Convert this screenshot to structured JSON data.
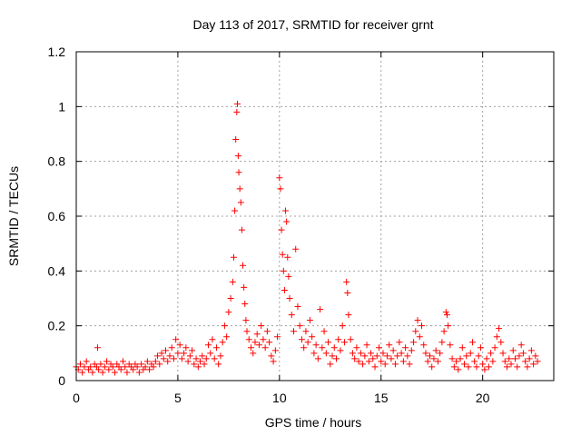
{
  "chart_data": {
    "type": "scatter",
    "title": "Day 113 of 2017, SRMTID for receiver grnt",
    "xlabel": "GPS time / hours",
    "ylabel": "SRMTID / TECUs",
    "xlim": [
      0,
      23.5
    ],
    "ylim": [
      0,
      1.2
    ],
    "x_ticks": [
      0,
      5,
      10,
      15,
      20
    ],
    "x_tick_labels": [
      "0",
      "5",
      "10",
      "15",
      "20"
    ],
    "y_ticks": [
      0,
      0.2,
      0.4,
      0.6,
      0.8,
      1.0,
      1.2
    ],
    "y_tick_labels": [
      "0",
      "0.2",
      "0.4",
      "0.6",
      "0.8",
      "1",
      "1.2"
    ],
    "grid": true,
    "marker": "+",
    "series_color": "#ff0000",
    "series": [
      {
        "name": "SRMTID",
        "points": [
          [
            0.0,
            0.05
          ],
          [
            0.1,
            0.04
          ],
          [
            0.2,
            0.06
          ],
          [
            0.3,
            0.03
          ],
          [
            0.4,
            0.05
          ],
          [
            0.5,
            0.07
          ],
          [
            0.6,
            0.04
          ],
          [
            0.7,
            0.05
          ],
          [
            0.8,
            0.03
          ],
          [
            0.9,
            0.06
          ],
          [
            1.0,
            0.05
          ],
          [
            1.05,
            0.12
          ],
          [
            1.1,
            0.04
          ],
          [
            1.2,
            0.06
          ],
          [
            1.3,
            0.03
          ],
          [
            1.4,
            0.05
          ],
          [
            1.5,
            0.07
          ],
          [
            1.6,
            0.04
          ],
          [
            1.7,
            0.06
          ],
          [
            1.8,
            0.05
          ],
          [
            1.9,
            0.03
          ],
          [
            2.0,
            0.06
          ],
          [
            2.1,
            0.05
          ],
          [
            2.2,
            0.04
          ],
          [
            2.3,
            0.07
          ],
          [
            2.4,
            0.05
          ],
          [
            2.5,
            0.03
          ],
          [
            2.6,
            0.06
          ],
          [
            2.7,
            0.05
          ],
          [
            2.8,
            0.04
          ],
          [
            2.9,
            0.06
          ],
          [
            3.0,
            0.05
          ],
          [
            3.1,
            0.03
          ],
          [
            3.2,
            0.06
          ],
          [
            3.3,
            0.04
          ],
          [
            3.4,
            0.05
          ],
          [
            3.5,
            0.07
          ],
          [
            3.6,
            0.04
          ],
          [
            3.7,
            0.06
          ],
          [
            3.8,
            0.05
          ],
          [
            3.9,
            0.07
          ],
          [
            4.0,
            0.09
          ],
          [
            4.1,
            0.06
          ],
          [
            4.2,
            0.1
          ],
          [
            4.3,
            0.08
          ],
          [
            4.4,
            0.11
          ],
          [
            4.5,
            0.07
          ],
          [
            4.6,
            0.09
          ],
          [
            4.7,
            0.12
          ],
          [
            4.8,
            0.08
          ],
          [
            4.9,
            0.15
          ],
          [
            5.0,
            0.1
          ],
          [
            5.1,
            0.13
          ],
          [
            5.2,
            0.08
          ],
          [
            5.3,
            0.1
          ],
          [
            5.4,
            0.12
          ],
          [
            5.5,
            0.07
          ],
          [
            5.6,
            0.09
          ],
          [
            5.7,
            0.11
          ],
          [
            5.8,
            0.06
          ],
          [
            5.9,
            0.08
          ],
          [
            6.0,
            0.05
          ],
          [
            6.1,
            0.07
          ],
          [
            6.2,
            0.09
          ],
          [
            6.3,
            0.06
          ],
          [
            6.4,
            0.08
          ],
          [
            6.5,
            0.13
          ],
          [
            6.6,
            0.1
          ],
          [
            6.7,
            0.15
          ],
          [
            6.8,
            0.08
          ],
          [
            6.9,
            0.12
          ],
          [
            7.0,
            0.06
          ],
          [
            7.1,
            0.09
          ],
          [
            7.2,
            0.14
          ],
          [
            7.3,
            0.2
          ],
          [
            7.4,
            0.16
          ],
          [
            7.5,
            0.25
          ],
          [
            7.6,
            0.3
          ],
          [
            7.7,
            0.36
          ],
          [
            7.75,
            0.45
          ],
          [
            7.8,
            0.62
          ],
          [
            7.85,
            0.88
          ],
          [
            7.9,
            0.98
          ],
          [
            7.93,
            1.01
          ],
          [
            7.97,
            0.82
          ],
          [
            8.0,
            0.76
          ],
          [
            8.05,
            0.7
          ],
          [
            8.1,
            0.65
          ],
          [
            8.15,
            0.55
          ],
          [
            8.2,
            0.42
          ],
          [
            8.25,
            0.34
          ],
          [
            8.3,
            0.28
          ],
          [
            8.35,
            0.22
          ],
          [
            8.4,
            0.18
          ],
          [
            8.5,
            0.15
          ],
          [
            8.6,
            0.12
          ],
          [
            8.7,
            0.1
          ],
          [
            8.8,
            0.14
          ],
          [
            8.9,
            0.17
          ],
          [
            9.0,
            0.13
          ],
          [
            9.1,
            0.2
          ],
          [
            9.2,
            0.15
          ],
          [
            9.3,
            0.12
          ],
          [
            9.4,
            0.18
          ],
          [
            9.5,
            0.14
          ],
          [
            9.6,
            0.09
          ],
          [
            9.7,
            0.07
          ],
          [
            9.8,
            0.11
          ],
          [
            9.9,
            0.16
          ],
          [
            10.0,
            0.74
          ],
          [
            10.05,
            0.7
          ],
          [
            10.1,
            0.55
          ],
          [
            10.15,
            0.46
          ],
          [
            10.2,
            0.4
          ],
          [
            10.25,
            0.33
          ],
          [
            10.3,
            0.62
          ],
          [
            10.35,
            0.58
          ],
          [
            10.4,
            0.45
          ],
          [
            10.45,
            0.38
          ],
          [
            10.5,
            0.3
          ],
          [
            10.6,
            0.24
          ],
          [
            10.7,
            0.18
          ],
          [
            10.8,
            0.48
          ],
          [
            10.9,
            0.27
          ],
          [
            11.0,
            0.2
          ],
          [
            11.1,
            0.15
          ],
          [
            11.2,
            0.12
          ],
          [
            11.3,
            0.18
          ],
          [
            11.4,
            0.14
          ],
          [
            11.5,
            0.22
          ],
          [
            11.6,
            0.16
          ],
          [
            11.7,
            0.1
          ],
          [
            11.8,
            0.13
          ],
          [
            11.9,
            0.08
          ],
          [
            12.0,
            0.26
          ],
          [
            12.1,
            0.12
          ],
          [
            12.2,
            0.18
          ],
          [
            12.3,
            0.1
          ],
          [
            12.4,
            0.14
          ],
          [
            12.5,
            0.06
          ],
          [
            12.6,
            0.09
          ],
          [
            12.7,
            0.12
          ],
          [
            12.8,
            0.08
          ],
          [
            12.9,
            0.15
          ],
          [
            13.0,
            0.11
          ],
          [
            13.1,
            0.2
          ],
          [
            13.2,
            0.14
          ],
          [
            13.3,
            0.36
          ],
          [
            13.35,
            0.32
          ],
          [
            13.4,
            0.24
          ],
          [
            13.5,
            0.15
          ],
          [
            13.6,
            0.1
          ],
          [
            13.7,
            0.08
          ],
          [
            13.8,
            0.12
          ],
          [
            13.9,
            0.07
          ],
          [
            14.0,
            0.1
          ],
          [
            14.1,
            0.06
          ],
          [
            14.2,
            0.09
          ],
          [
            14.3,
            0.13
          ],
          [
            14.4,
            0.07
          ],
          [
            14.5,
            0.1
          ],
          [
            14.6,
            0.08
          ],
          [
            14.7,
            0.05
          ],
          [
            14.8,
            0.09
          ],
          [
            14.9,
            0.12
          ],
          [
            15.0,
            0.07
          ],
          [
            15.1,
            0.1
          ],
          [
            15.2,
            0.06
          ],
          [
            15.3,
            0.09
          ],
          [
            15.4,
            0.13
          ],
          [
            15.5,
            0.08
          ],
          [
            15.6,
            0.11
          ],
          [
            15.7,
            0.06
          ],
          [
            15.8,
            0.09
          ],
          [
            15.9,
            0.14
          ],
          [
            16.0,
            0.1
          ],
          [
            16.1,
            0.07
          ],
          [
            16.2,
            0.12
          ],
          [
            16.3,
            0.09
          ],
          [
            16.4,
            0.06
          ],
          [
            16.5,
            0.11
          ],
          [
            16.6,
            0.14
          ],
          [
            16.7,
            0.18
          ],
          [
            16.8,
            0.22
          ],
          [
            16.9,
            0.16
          ],
          [
            17.0,
            0.2
          ],
          [
            17.1,
            0.13
          ],
          [
            17.2,
            0.1
          ],
          [
            17.3,
            0.07
          ],
          [
            17.4,
            0.09
          ],
          [
            17.5,
            0.05
          ],
          [
            17.6,
            0.08
          ],
          [
            17.7,
            0.11
          ],
          [
            17.8,
            0.07
          ],
          [
            17.9,
            0.1
          ],
          [
            18.0,
            0.14
          ],
          [
            18.1,
            0.18
          ],
          [
            18.2,
            0.25
          ],
          [
            18.25,
            0.24
          ],
          [
            18.3,
            0.2
          ],
          [
            18.4,
            0.13
          ],
          [
            18.5,
            0.08
          ],
          [
            18.6,
            0.05
          ],
          [
            18.7,
            0.07
          ],
          [
            18.8,
            0.04
          ],
          [
            18.9,
            0.08
          ],
          [
            19.0,
            0.12
          ],
          [
            19.1,
            0.06
          ],
          [
            19.2,
            0.09
          ],
          [
            19.3,
            0.05
          ],
          [
            19.4,
            0.1
          ],
          [
            19.5,
            0.14
          ],
          [
            19.6,
            0.07
          ],
          [
            19.7,
            0.05
          ],
          [
            19.8,
            0.09
          ],
          [
            19.9,
            0.12
          ],
          [
            20.0,
            0.06
          ],
          [
            20.1,
            0.04
          ],
          [
            20.2,
            0.08
          ],
          [
            20.3,
            0.05
          ],
          [
            20.4,
            0.1
          ],
          [
            20.5,
            0.07
          ],
          [
            20.6,
            0.12
          ],
          [
            20.7,
            0.16
          ],
          [
            20.8,
            0.19
          ],
          [
            20.9,
            0.14
          ],
          [
            21.0,
            0.1
          ],
          [
            21.1,
            0.07
          ],
          [
            21.2,
            0.05
          ],
          [
            21.3,
            0.08
          ],
          [
            21.4,
            0.06
          ],
          [
            21.5,
            0.11
          ],
          [
            21.6,
            0.08
          ],
          [
            21.7,
            0.05
          ],
          [
            21.8,
            0.09
          ],
          [
            21.9,
            0.13
          ],
          [
            22.0,
            0.1
          ],
          [
            22.1,
            0.07
          ],
          [
            22.2,
            0.05
          ],
          [
            22.3,
            0.08
          ],
          [
            22.4,
            0.11
          ],
          [
            22.5,
            0.06
          ],
          [
            22.6,
            0.09
          ],
          [
            22.7,
            0.07
          ]
        ]
      }
    ]
  }
}
